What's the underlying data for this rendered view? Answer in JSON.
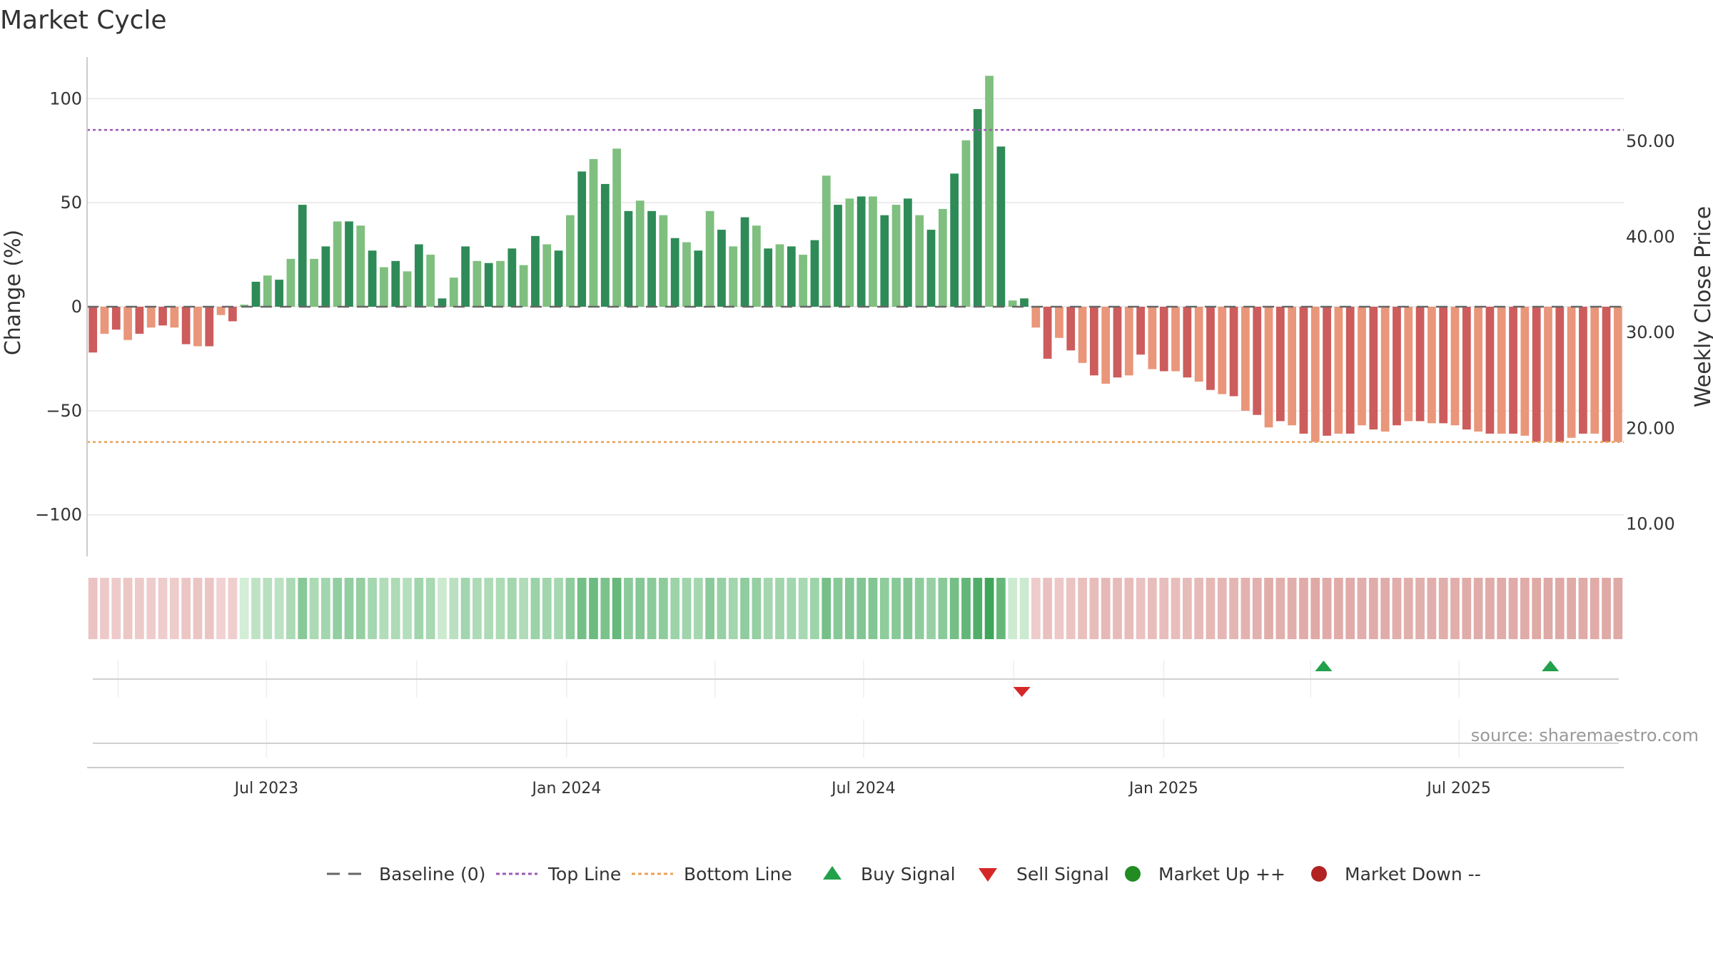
{
  "chart_data": {
    "type": "bar",
    "title": "Market Cycle",
    "ylabel": "Change (%)",
    "y2label": "Weekly Close Price",
    "ylim": [
      -120,
      120
    ],
    "yticks": [
      100,
      50,
      0,
      -50,
      -100
    ],
    "ytick_labels": [
      "100",
      "50",
      "0",
      "−50",
      "−100"
    ],
    "y2lim": [
      6.6,
      58.8
    ],
    "y2ticks": [
      50,
      40,
      30,
      20,
      10
    ],
    "y2tick_labels": [
      "50.00",
      "40.00",
      "30.00",
      "20.00",
      "10.00"
    ],
    "x_start": "2023-03-13",
    "x_end": "2025-10-10",
    "x_interval_days": 7,
    "xticks": [
      "2023-07-01",
      "2024-01-01",
      "2024-07-01",
      "2025-01-01",
      "2025-07-01"
    ],
    "xtick_labels": [
      "Jul 2023",
      "Jan 2024",
      "Jul 2024",
      "Jan 2025",
      "Jul 2025"
    ],
    "top_line": 85,
    "bottom_line": -65,
    "baseline": 0,
    "grid": true,
    "values": [
      -22,
      -13,
      -11,
      -16,
      -13,
      -10,
      -9,
      -10,
      -18,
      -19,
      -19,
      -4,
      -7,
      1,
      12,
      15,
      13,
      23,
      49,
      23,
      29,
      41,
      41,
      39,
      27,
      19,
      22,
      17,
      30,
      25,
      4,
      14,
      29,
      22,
      21,
      22,
      28,
      20,
      34,
      30,
      27,
      44,
      65,
      71,
      59,
      76,
      46,
      51,
      46,
      44,
      33,
      31,
      27,
      46,
      37,
      29,
      43,
      39,
      28,
      30,
      29,
      25,
      32,
      63,
      49,
      52,
      53,
      53,
      44,
      49,
      52,
      44,
      37,
      47,
      64,
      80,
      95,
      111,
      77,
      3,
      4,
      -10,
      -25,
      -15,
      -21,
      -27,
      -33,
      -37,
      -34,
      -33,
      -23,
      -30,
      -31,
      -31,
      -34,
      -36,
      -40,
      -42,
      -43,
      -50,
      -52,
      -58,
      -55,
      -57,
      -61,
      -65,
      -62,
      -61,
      -61,
      -57,
      -59,
      -60,
      -57,
      -55,
      -55,
      -56,
      -56,
      -57,
      -59,
      -60,
      -61,
      -61,
      -61,
      -62,
      -65,
      -65,
      -65,
      -63,
      -61,
      -61,
      -65,
      -65
    ],
    "buy_signals": [
      "2025-04-09",
      "2025-08-26"
    ],
    "sell_signals": [
      "2024-10-06"
    ],
    "source": "source: sharemaestro.com",
    "colors": {
      "strong_up": "#2e8b57",
      "up": "#7fbf7f",
      "strong_down": "#cd5c5c",
      "down": "#e9967a",
      "top_line": "#9b59b6",
      "bottom_line": "#e8a25a",
      "baseline": "#666666",
      "buy": "#22a04b",
      "sell": "#d62728",
      "market_up": "#228b22",
      "market_down": "#b22222"
    },
    "legend": [
      {
        "label": "Baseline (0)",
        "kind": "dash",
        "color": "#666666"
      },
      {
        "label": "Top Line",
        "kind": "dotted",
        "color": "#9b59b6"
      },
      {
        "label": "Bottom Line",
        "kind": "dotted",
        "color": "#e8a25a"
      },
      {
        "label": "Buy Signal",
        "kind": "triangle-up",
        "color": "#22a04b"
      },
      {
        "label": "Sell Signal",
        "kind": "triangle-down",
        "color": "#d62728"
      },
      {
        "label": "Market Up ++",
        "kind": "circle",
        "color": "#228b22"
      },
      {
        "label": "Market Down --",
        "kind": "circle",
        "color": "#b22222"
      }
    ]
  }
}
